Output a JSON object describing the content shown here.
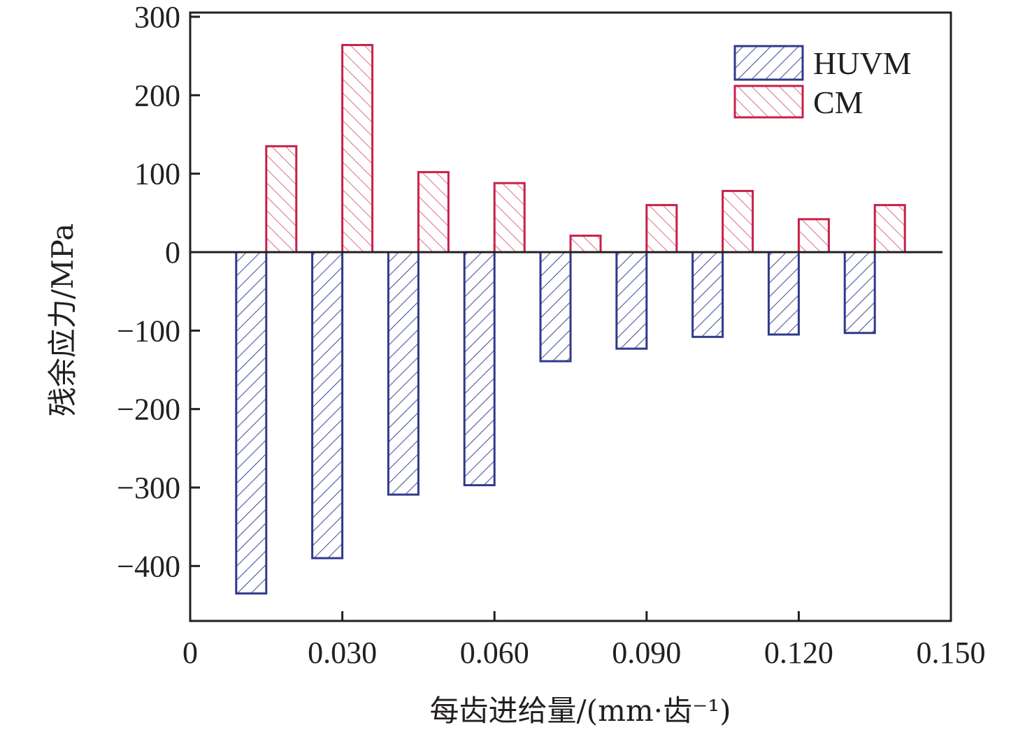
{
  "chart_data": {
    "type": "bar",
    "title": "",
    "xlabel": "每齿进给量/(mm·齿⁻¹)",
    "ylabel": "残余应力/MPa",
    "x": [
      0.015,
      0.03,
      0.045,
      0.06,
      0.075,
      0.09,
      0.105,
      0.12,
      0.135
    ],
    "series": [
      {
        "name": "HUVM",
        "color": "#2e3a8c",
        "hatch": "forward-diagonal",
        "values": [
          -435,
          -390,
          -309,
          -297,
          -139,
          -123,
          -108,
          -105,
          -103
        ]
      },
      {
        "name": "CM",
        "color": "#c8204a",
        "hatch": "back-diagonal",
        "values": [
          135,
          264,
          102,
          88,
          21,
          60,
          78,
          42,
          60
        ]
      }
    ],
    "xlim": [
      0,
      0.15
    ],
    "ylim": [
      -470,
      300
    ],
    "xticks": [
      0,
      0.03,
      0.06,
      0.09,
      0.12,
      0.15
    ],
    "xtick_labels": [
      "0",
      "0.030",
      "0.060",
      "0.090",
      "0.120",
      "0.150"
    ],
    "yticks": [
      300,
      200,
      100,
      0,
      -100,
      -200,
      -300,
      -400
    ],
    "ytick_labels": [
      "300",
      "200",
      "100",
      "0",
      "−100",
      "−200",
      "−300",
      "−400"
    ],
    "grid": false,
    "legend_position": "top-right"
  }
}
